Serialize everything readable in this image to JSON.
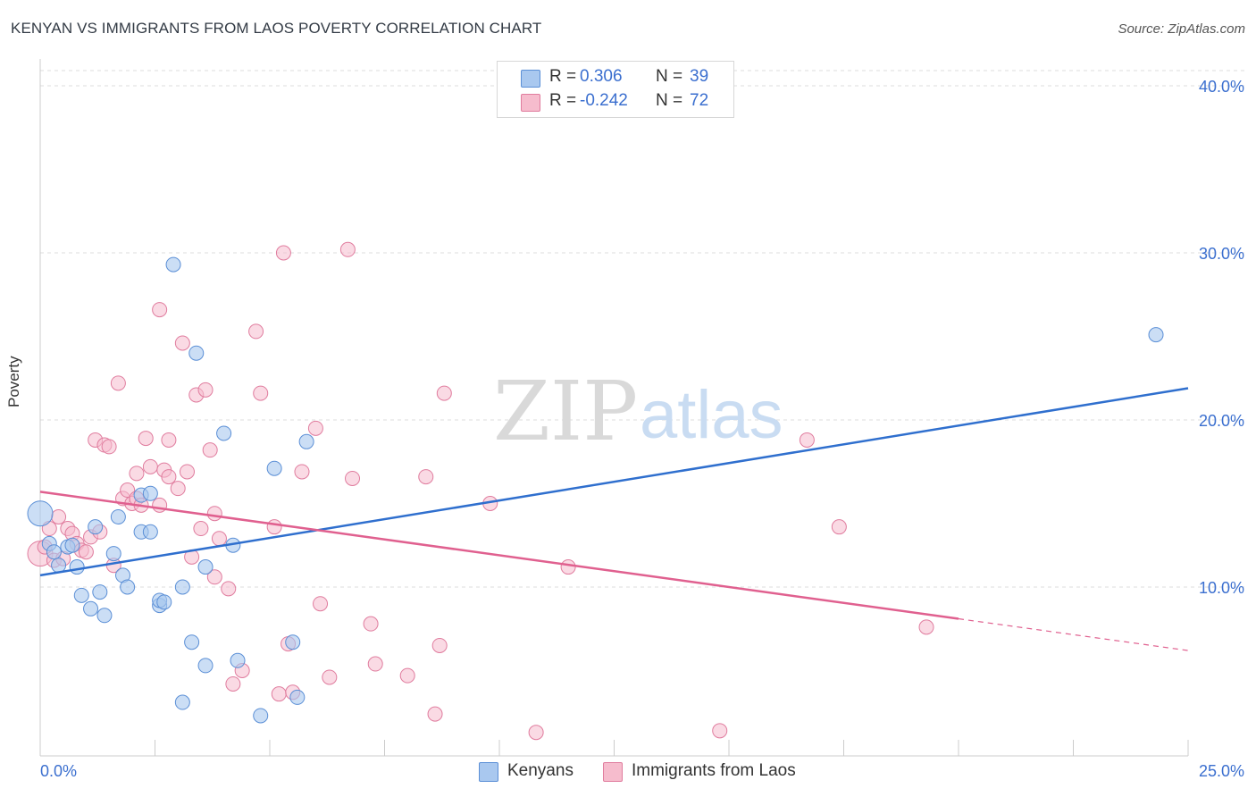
{
  "title": "KENYAN VS IMMIGRANTS FROM LAOS POVERTY CORRELATION CHART",
  "source": "Source: ZipAtlas.com",
  "watermark": {
    "zip": "ZIP",
    "atlas": "atlas"
  },
  "legend": {
    "rows": [
      {
        "r_label": "R =",
        "r_value": "0.306",
        "n_label": "N =",
        "n_value": "39"
      },
      {
        "r_label": "R =",
        "r_value": "-0.242",
        "n_label": "N =",
        "n_value": "72"
      }
    ]
  },
  "bottom_legend": [
    "Kenyans",
    "Immigrants from Laos"
  ],
  "colors": {
    "blue_fill": "#a9c8ef",
    "blue_stroke": "#5b8fd6",
    "blue_line": "#2f6fce",
    "pink_fill": "#f6bccd",
    "pink_stroke": "#e07c9e",
    "pink_line": "#e0608f",
    "axis_text": "#3b6fcf",
    "grid": "#dddddd"
  },
  "chart_data": {
    "type": "scatter",
    "title": "KENYAN VS IMMIGRANTS FROM LAOS POVERTY CORRELATION CHART",
    "xlabel": "",
    "ylabel": "Poverty",
    "xlim": [
      0,
      25
    ],
    "ylim": [
      0,
      40
    ],
    "x_tick_labels": [
      "0.0%",
      "25.0%"
    ],
    "y_ticks": [
      10,
      20,
      30,
      40
    ],
    "y_tick_labels": [
      "10.0%",
      "20.0%",
      "30.0%",
      "40.0%"
    ],
    "grid": true,
    "legend_position": "top-center",
    "series": [
      {
        "name": "Kenyans",
        "r": 0.306,
        "n": 39,
        "trend": {
          "x": [
            0,
            25
          ],
          "y": [
            10.7,
            21.9
          ]
        },
        "points": [
          [
            0.0,
            14.4
          ],
          [
            0.2,
            12.6
          ],
          [
            0.4,
            11.3
          ],
          [
            0.6,
            12.4
          ],
          [
            0.7,
            12.5
          ],
          [
            0.8,
            11.2
          ],
          [
            0.9,
            9.5
          ],
          [
            1.1,
            8.7
          ],
          [
            1.2,
            13.6
          ],
          [
            1.3,
            9.7
          ],
          [
            1.4,
            8.3
          ],
          [
            1.6,
            12.0
          ],
          [
            1.7,
            14.2
          ],
          [
            1.8,
            10.7
          ],
          [
            1.9,
            10.0
          ],
          [
            2.2,
            15.5
          ],
          [
            2.2,
            13.3
          ],
          [
            2.4,
            15.6
          ],
          [
            2.4,
            13.3
          ],
          [
            2.6,
            8.9
          ],
          [
            2.6,
            9.2
          ],
          [
            2.7,
            9.1
          ],
          [
            2.9,
            29.3
          ],
          [
            3.1,
            3.1
          ],
          [
            3.1,
            10.0
          ],
          [
            3.3,
            6.7
          ],
          [
            3.4,
            24.0
          ],
          [
            3.6,
            11.2
          ],
          [
            3.6,
            5.3
          ],
          [
            4.0,
            19.2
          ],
          [
            4.2,
            12.5
          ],
          [
            4.3,
            5.6
          ],
          [
            4.8,
            2.3
          ],
          [
            5.1,
            17.1
          ],
          [
            5.5,
            6.7
          ],
          [
            5.6,
            3.4
          ],
          [
            5.8,
            18.7
          ],
          [
            24.3,
            25.1
          ],
          [
            0.3,
            12.1
          ]
        ]
      },
      {
        "name": "Immigrants from Laos",
        "r": -0.242,
        "n": 72,
        "trend": {
          "x": [
            0,
            20
          ],
          "y": [
            15.7,
            8.1
          ]
        },
        "trend_dashed": {
          "x": [
            20,
            25
          ],
          "y": [
            8.1,
            6.2
          ]
        },
        "points": [
          [
            0.0,
            12.0
          ],
          [
            0.1,
            12.4
          ],
          [
            0.2,
            13.5
          ],
          [
            0.3,
            11.6
          ],
          [
            0.4,
            14.2
          ],
          [
            0.5,
            11.7
          ],
          [
            0.6,
            13.5
          ],
          [
            0.7,
            13.2
          ],
          [
            0.8,
            12.6
          ],
          [
            0.9,
            12.2
          ],
          [
            1.0,
            12.1
          ],
          [
            1.1,
            13.0
          ],
          [
            1.2,
            18.8
          ],
          [
            1.3,
            13.3
          ],
          [
            1.4,
            18.5
          ],
          [
            1.5,
            18.4
          ],
          [
            1.6,
            11.3
          ],
          [
            1.7,
            22.2
          ],
          [
            1.8,
            15.3
          ],
          [
            1.9,
            15.8
          ],
          [
            2.0,
            15.0
          ],
          [
            2.1,
            16.8
          ],
          [
            2.1,
            15.3
          ],
          [
            2.2,
            14.9
          ],
          [
            2.3,
            18.9
          ],
          [
            2.4,
            17.2
          ],
          [
            2.6,
            14.9
          ],
          [
            2.6,
            26.6
          ],
          [
            2.7,
            17.0
          ],
          [
            2.8,
            16.6
          ],
          [
            2.8,
            18.8
          ],
          [
            3.0,
            15.9
          ],
          [
            3.1,
            24.6
          ],
          [
            3.2,
            16.9
          ],
          [
            3.3,
            11.8
          ],
          [
            3.4,
            21.5
          ],
          [
            3.5,
            13.5
          ],
          [
            3.6,
            21.8
          ],
          [
            3.7,
            18.2
          ],
          [
            3.8,
            14.4
          ],
          [
            3.8,
            10.6
          ],
          [
            3.9,
            12.9
          ],
          [
            4.1,
            9.9
          ],
          [
            4.2,
            4.2
          ],
          [
            4.4,
            5.0
          ],
          [
            4.7,
            25.3
          ],
          [
            4.8,
            21.6
          ],
          [
            5.1,
            13.6
          ],
          [
            5.2,
            3.6
          ],
          [
            5.3,
            30.0
          ],
          [
            5.4,
            6.6
          ],
          [
            5.5,
            3.7
          ],
          [
            5.7,
            16.9
          ],
          [
            6.0,
            19.5
          ],
          [
            6.1,
            9.0
          ],
          [
            6.3,
            4.6
          ],
          [
            6.7,
            30.2
          ],
          [
            6.8,
            16.5
          ],
          [
            7.2,
            7.8
          ],
          [
            7.3,
            5.4
          ],
          [
            8.0,
            4.7
          ],
          [
            8.4,
            16.6
          ],
          [
            8.6,
            2.4
          ],
          [
            8.7,
            6.5
          ],
          [
            8.8,
            21.6
          ],
          [
            9.8,
            15.0
          ],
          [
            10.8,
            1.3
          ],
          [
            11.5,
            11.2
          ],
          [
            14.8,
            1.4
          ],
          [
            16.7,
            18.8
          ],
          [
            17.4,
            13.6
          ],
          [
            19.3,
            7.6
          ]
        ]
      }
    ]
  }
}
